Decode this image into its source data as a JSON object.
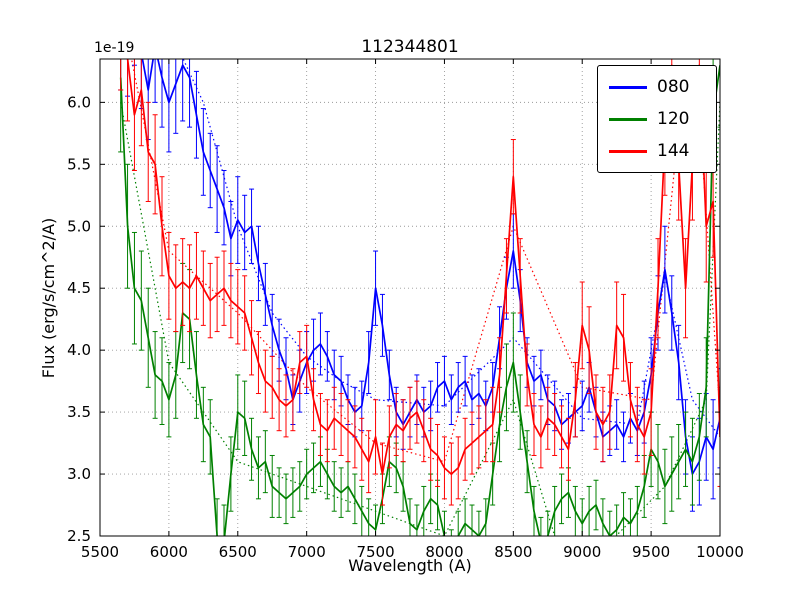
{
  "chart_data": {
    "type": "line",
    "title": "112344801",
    "xlabel": "Wavelength (A)",
    "ylabel": "Flux (erg/s/cm^2/A)",
    "y_offset_label": "1e-19",
    "xlim": [
      5500,
      10000
    ],
    "ylim": [
      2.5,
      6.35
    ],
    "xticks": [
      5500,
      6000,
      6500,
      7000,
      7500,
      8000,
      8500,
      9000,
      9500,
      10000
    ],
    "yticks": [
      2.5,
      3.0,
      3.5,
      4.0,
      4.5,
      5.0,
      5.5,
      6.0
    ],
    "grid": true,
    "grid_style": "dotted",
    "legend_position": "upper right",
    "x": [
      5650,
      5700,
      5750,
      5800,
      5850,
      5900,
      5950,
      6000,
      6050,
      6100,
      6150,
      6200,
      6250,
      6300,
      6350,
      6400,
      6450,
      6500,
      6550,
      6600,
      6650,
      6700,
      6750,
      6800,
      6850,
      6900,
      6950,
      7000,
      7050,
      7100,
      7150,
      7200,
      7250,
      7300,
      7350,
      7400,
      7450,
      7500,
      7550,
      7600,
      7650,
      7700,
      7750,
      7800,
      7850,
      7900,
      7950,
      8000,
      8050,
      8100,
      8150,
      8200,
      8250,
      8300,
      8350,
      8400,
      8450,
      8500,
      8550,
      8600,
      8650,
      8700,
      8750,
      8800,
      8850,
      8900,
      8950,
      9000,
      9050,
      9100,
      9150,
      9200,
      9250,
      9300,
      9350,
      9400,
      9450,
      9500,
      9550,
      9600,
      9650,
      9700,
      9750,
      9800,
      9850,
      9900,
      9950,
      10000
    ],
    "series": [
      {
        "name": "080",
        "color": "#0000ff",
        "values": [
          6.6,
          6.5,
          6.8,
          6.4,
          6.1,
          6.45,
          6.2,
          6.0,
          6.15,
          6.3,
          6.2,
          5.9,
          5.6,
          5.45,
          5.3,
          5.15,
          4.9,
          5.05,
          4.95,
          5.0,
          4.7,
          4.45,
          4.2,
          4.0,
          3.85,
          3.6,
          3.75,
          3.9,
          4.0,
          4.05,
          3.95,
          3.8,
          3.75,
          3.6,
          3.5,
          3.55,
          3.9,
          4.5,
          4.2,
          3.8,
          3.5,
          3.4,
          3.5,
          3.6,
          3.5,
          3.55,
          3.7,
          3.75,
          3.6,
          3.7,
          3.75,
          3.6,
          3.65,
          3.55,
          3.7,
          4.1,
          4.5,
          4.8,
          4.4,
          3.9,
          3.75,
          3.8,
          3.6,
          3.55,
          3.4,
          3.45,
          3.5,
          3.55,
          3.7,
          3.5,
          3.3,
          3.35,
          3.4,
          3.3,
          3.45,
          3.35,
          3.5,
          3.8,
          4.3,
          4.65,
          4.3,
          3.9,
          3.3,
          3.0,
          3.1,
          3.3,
          3.2,
          3.45
        ],
        "err": [
          0.5,
          0.45,
          0.5,
          0.45,
          0.4,
          0.45,
          0.4,
          0.4,
          0.4,
          0.45,
          0.4,
          0.35,
          0.35,
          0.3,
          0.35,
          0.3,
          0.3,
          0.35,
          0.3,
          0.3,
          0.3,
          0.25,
          0.25,
          0.25,
          0.25,
          0.2,
          0.25,
          0.25,
          0.25,
          0.25,
          0.2,
          0.2,
          0.2,
          0.2,
          0.2,
          0.2,
          0.25,
          0.3,
          0.25,
          0.2,
          0.2,
          0.2,
          0.2,
          0.2,
          0.2,
          0.2,
          0.2,
          0.2,
          0.2,
          0.2,
          0.2,
          0.2,
          0.2,
          0.2,
          0.2,
          0.25,
          0.25,
          0.3,
          0.25,
          0.2,
          0.2,
          0.2,
          0.2,
          0.2,
          0.2,
          0.2,
          0.2,
          0.2,
          0.2,
          0.2,
          0.2,
          0.2,
          0.2,
          0.2,
          0.2,
          0.2,
          0.25,
          0.3,
          0.3,
          0.35,
          0.3,
          0.3,
          0.3,
          0.3,
          0.35,
          0.35,
          0.4,
          0.4
        ],
        "fit_x": [
          5650,
          6000,
          6250,
          6500,
          6750,
          7000,
          7250,
          7500,
          8000,
          8500,
          9000,
          9400,
          9600,
          9800,
          10000
        ],
        "fit_y": [
          7.0,
          6.6,
          6.0,
          5.0,
          4.3,
          3.95,
          3.75,
          3.6,
          3.55,
          4.1,
          3.45,
          3.4,
          4.6,
          3.6,
          3.3
        ]
      },
      {
        "name": "120",
        "color": "#008000",
        "values": [
          6.2,
          5.0,
          4.5,
          4.4,
          4.1,
          3.8,
          3.75,
          3.6,
          3.8,
          4.3,
          4.25,
          3.8,
          3.4,
          3.3,
          2.5,
          2.45,
          3.0,
          3.5,
          3.45,
          3.2,
          3.05,
          3.1,
          2.9,
          2.85,
          2.8,
          2.85,
          2.9,
          3.0,
          3.05,
          3.1,
          3.0,
          2.9,
          2.85,
          2.9,
          2.8,
          2.7,
          2.6,
          2.55,
          2.8,
          3.1,
          3.05,
          2.9,
          2.6,
          2.55,
          2.7,
          2.8,
          2.75,
          2.5,
          2.35,
          2.5,
          2.6,
          2.55,
          2.5,
          2.6,
          3.0,
          3.4,
          3.7,
          3.9,
          3.5,
          3.1,
          2.7,
          2.45,
          2.5,
          2.7,
          2.8,
          2.85,
          2.7,
          2.6,
          2.7,
          2.75,
          2.6,
          2.5,
          2.55,
          2.65,
          2.6,
          2.7,
          2.9,
          3.2,
          3.1,
          2.9,
          3.0,
          3.1,
          3.2,
          3.1,
          3.3,
          3.7,
          5.9,
          6.3
        ],
        "err": [
          0.6,
          0.5,
          0.45,
          0.4,
          0.4,
          0.35,
          0.35,
          0.3,
          0.35,
          0.4,
          0.4,
          0.35,
          0.3,
          0.3,
          0.3,
          0.3,
          0.3,
          0.3,
          0.3,
          0.25,
          0.25,
          0.25,
          0.25,
          0.2,
          0.2,
          0.2,
          0.2,
          0.2,
          0.2,
          0.2,
          0.2,
          0.2,
          0.2,
          0.2,
          0.2,
          0.2,
          0.2,
          0.2,
          0.2,
          0.2,
          0.2,
          0.2,
          0.2,
          0.2,
          0.2,
          0.2,
          0.2,
          0.2,
          0.2,
          0.2,
          0.2,
          0.2,
          0.2,
          0.2,
          0.25,
          0.3,
          0.35,
          0.4,
          0.3,
          0.25,
          0.2,
          0.2,
          0.2,
          0.2,
          0.2,
          0.2,
          0.2,
          0.2,
          0.2,
          0.2,
          0.2,
          0.2,
          0.2,
          0.2,
          0.2,
          0.2,
          0.25,
          0.3,
          0.3,
          0.3,
          0.3,
          0.3,
          0.3,
          0.35,
          0.35,
          0.4,
          0.45,
          0.5
        ],
        "fit_x": [
          5650,
          6000,
          6500,
          7000,
          7500,
          8000,
          8500,
          8800,
          9200,
          9600,
          9900,
          10000
        ],
        "fit_y": [
          6.0,
          3.9,
          3.1,
          2.9,
          2.7,
          2.5,
          3.6,
          2.5,
          2.45,
          2.9,
          3.6,
          6.0
        ]
      },
      {
        "name": "144",
        "color": "#ff0000",
        "values": [
          6.6,
          6.35,
          5.9,
          6.1,
          5.6,
          5.5,
          5.0,
          4.6,
          4.5,
          4.55,
          4.5,
          4.6,
          4.5,
          4.4,
          4.45,
          4.5,
          4.4,
          4.35,
          4.3,
          4.1,
          3.9,
          3.75,
          3.7,
          3.6,
          3.55,
          3.6,
          3.9,
          3.95,
          3.6,
          3.4,
          3.35,
          3.45,
          3.4,
          3.35,
          3.3,
          3.2,
          3.1,
          3.3,
          3.0,
          3.3,
          3.4,
          3.35,
          3.45,
          3.5,
          3.35,
          3.2,
          3.15,
          3.05,
          3.0,
          3.05,
          3.2,
          3.25,
          3.3,
          3.35,
          3.4,
          3.8,
          4.6,
          5.4,
          4.6,
          3.8,
          3.4,
          3.3,
          3.45,
          3.4,
          3.3,
          3.2,
          3.6,
          4.2,
          4.0,
          3.5,
          3.4,
          3.5,
          4.2,
          4.1,
          3.6,
          3.4,
          3.3,
          3.5,
          4.5,
          5.7,
          6.3,
          5.5,
          4.5,
          5.5,
          6.3,
          5.0,
          5.2,
          3.3
        ],
        "err": [
          0.5,
          0.5,
          0.45,
          0.45,
          0.4,
          0.4,
          0.4,
          0.35,
          0.35,
          0.35,
          0.35,
          0.35,
          0.3,
          0.3,
          0.3,
          0.3,
          0.3,
          0.3,
          0.3,
          0.3,
          0.25,
          0.25,
          0.25,
          0.25,
          0.25,
          0.25,
          0.25,
          0.25,
          0.25,
          0.25,
          0.25,
          0.25,
          0.25,
          0.25,
          0.25,
          0.25,
          0.25,
          0.3,
          0.25,
          0.25,
          0.25,
          0.25,
          0.25,
          0.25,
          0.25,
          0.25,
          0.25,
          0.25,
          0.25,
          0.25,
          0.25,
          0.25,
          0.25,
          0.25,
          0.3,
          0.3,
          0.3,
          0.3,
          0.3,
          0.25,
          0.25,
          0.25,
          0.25,
          0.25,
          0.25,
          0.25,
          0.3,
          0.35,
          0.35,
          0.3,
          0.3,
          0.3,
          0.35,
          0.35,
          0.3,
          0.3,
          0.3,
          0.35,
          0.4,
          0.45,
          0.5,
          0.45,
          0.4,
          0.45,
          0.5,
          0.45,
          0.45,
          0.4
        ],
        "fit_x": [
          5650,
          6000,
          6500,
          7000,
          7500,
          8000,
          8500,
          9000,
          9500,
          9700,
          9850,
          10000
        ],
        "fit_y": [
          6.8,
          4.8,
          4.3,
          3.7,
          3.25,
          3.1,
          5.0,
          3.7,
          3.6,
          5.8,
          5.9,
          3.5
        ]
      }
    ]
  }
}
